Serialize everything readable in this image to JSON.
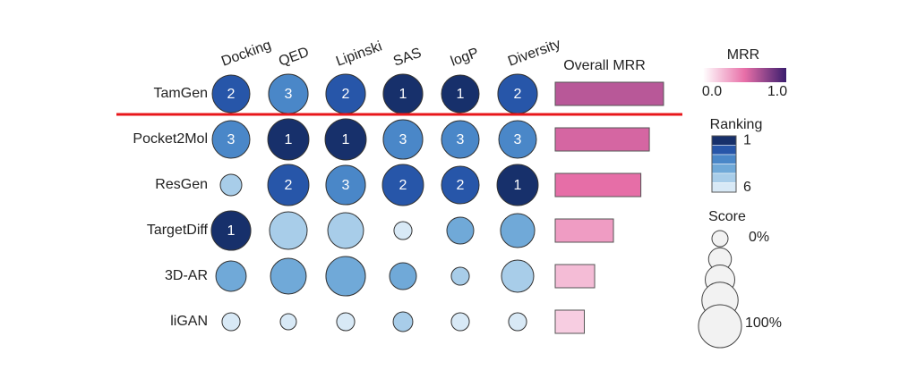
{
  "chart_data": {
    "type": "bubble_matrix",
    "rows": [
      "TamGen",
      "Pocket2Mol",
      "ResGen",
      "TargetDiff",
      "3D-AR",
      "liGAN"
    ],
    "columns": [
      "Docking",
      "QED",
      "Lipinski",
      "SAS",
      "logP",
      "Diversity"
    ],
    "ranks": [
      [
        2,
        3,
        2,
        1,
        1,
        2
      ],
      [
        3,
        1,
        1,
        3,
        3,
        3
      ],
      [
        5,
        2,
        3,
        2,
        2,
        1
      ],
      [
        1,
        5,
        5,
        6,
        4,
        4
      ],
      [
        4,
        4,
        4,
        4,
        5,
        5
      ],
      [
        6,
        6,
        6,
        5,
        6,
        6
      ]
    ],
    "scores": [
      [
        80,
        87,
        87,
        87,
        80,
        87
      ],
      [
        80,
        93,
        93,
        87,
        80,
        80
      ],
      [
        20,
        93,
        87,
        93,
        80,
        93
      ],
      [
        87,
        80,
        73,
        7,
        40,
        67
      ],
      [
        53,
        73,
        87,
        40,
        7,
        60
      ],
      [
        7,
        0,
        7,
        13,
        7,
        7
      ]
    ],
    "show_rank_label_max": 3,
    "mrr_title": "Overall MRR",
    "mrr": [
      0.64,
      0.556,
      0.506,
      0.344,
      0.233,
      0.172
    ],
    "mrr_legend": {
      "title": "MRR",
      "lim": [
        0,
        1
      ],
      "ticks": [
        {
          "value": 0,
          "label": "0.0"
        },
        {
          "value": 1,
          "label": "1.0"
        }
      ],
      "colors": [
        "#ffffff",
        "#e86fa8",
        "#3b1d6e"
      ]
    },
    "rank_legend": {
      "title": "Ranking",
      "ticks": [
        1,
        6
      ],
      "colors": [
        "#17306b",
        "#2756a9",
        "#4a87c8",
        "#70a9d8",
        "#a8cde9",
        "#d8e9f6"
      ]
    },
    "score_legend": {
      "title": "Score",
      "ticks": [
        {
          "value": 0,
          "label": "0%"
        },
        {
          "value": 100,
          "label": "100%"
        }
      ]
    },
    "separator_color": "#e8171b"
  }
}
